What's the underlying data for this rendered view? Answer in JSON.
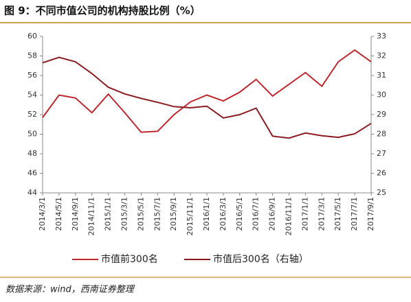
{
  "chart_data": {
    "type": "line",
    "title": "图 9：不同市值公司的机构持股比例（%）",
    "source": "数据来源：wind，西南证券整理",
    "categories": [
      "2014/3/1",
      "2014/5/1",
      "2014/9/1",
      "2014/11/1",
      "2015/1/1",
      "2015/3/1",
      "2015/5/1",
      "2015/7/1",
      "2015/9/1",
      "2015/11/1",
      "2016/1/1",
      "2016/3/1",
      "2016/5/1",
      "2016/7/1",
      "2016/9/1",
      "2016/11/1",
      "2017/1/1",
      "2017/3/1",
      "2017/5/1",
      "2017/7/1",
      "2017/9/1"
    ],
    "series": [
      {
        "name": "市值前300名",
        "color": "#c0272d",
        "values": [
          51.7,
          54.0,
          53.7,
          52.2,
          54.1,
          52.2,
          50.2,
          50.3,
          52.0,
          53.3,
          54.0,
          53.4,
          54.3,
          55.6,
          53.9,
          55.1,
          56.3,
          54.9,
          57.4,
          58.6,
          57.4
        ]
      },
      {
        "name": "市值后300名（右轴）",
        "color": "#8b1a1e",
        "axis": "y2",
        "values": [
          31.65,
          31.93,
          31.7,
          31.1,
          30.4,
          30.06,
          29.83,
          29.63,
          29.41,
          29.35,
          29.43,
          28.83,
          29.0,
          29.33,
          27.9,
          27.8,
          28.06,
          27.92,
          27.84,
          28.02,
          28.55
        ]
      }
    ],
    "ylim": [
      44,
      60
    ],
    "yticks": [
      44,
      46,
      48,
      50,
      52,
      54,
      56,
      58,
      60
    ],
    "y2lim": [
      25,
      33
    ],
    "y2ticks": [
      25,
      26,
      27,
      28,
      29,
      30,
      31,
      32,
      33
    ],
    "grid": false
  }
}
